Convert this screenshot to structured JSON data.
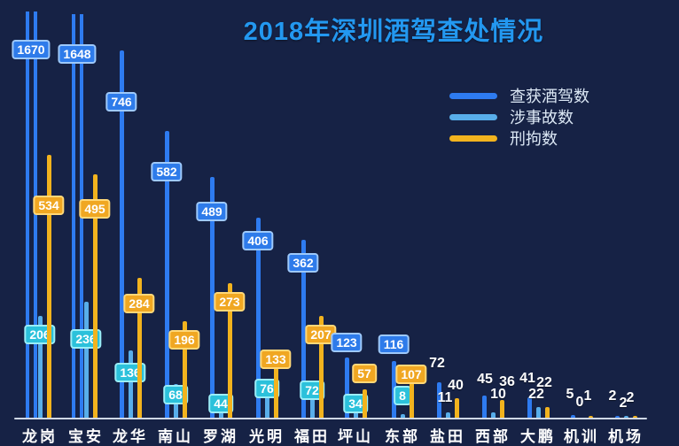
{
  "title": "2018年深圳酒驾查处情况",
  "legend": [
    {
      "label": "查获酒驾数",
      "color": "#2e7bf0"
    },
    {
      "label": "涉事故数",
      "color": "#58aeea"
    },
    {
      "label": "刑拘数",
      "color": "#f2b31e"
    }
  ],
  "chart_data": {
    "type": "bar",
    "title": "2018年深圳酒驾查处情况",
    "categories": [
      "龙岗",
      "宝安",
      "龙华",
      "南山",
      "罗湖",
      "光明",
      "福田",
      "坪山",
      "东部",
      "盐田",
      "西部",
      "大鹏",
      "机训",
      "机场"
    ],
    "series": [
      {
        "name": "查获酒驾数",
        "color": "#2e7bf0",
        "values": [
          1670,
          1648,
          746,
          582,
          489,
          406,
          362,
          123,
          116,
          72,
          45,
          41,
          5,
          2
        ]
      },
      {
        "name": "涉事故数",
        "color": "#58aeea",
        "values": [
          206,
          236,
          136,
          68,
          44,
          76,
          72,
          34,
          8,
          11,
          10,
          22,
          0,
          2
        ]
      },
      {
        "name": "刑拘数",
        "color": "#f2b31e",
        "values": [
          534,
          495,
          284,
          196,
          273,
          133,
          207,
          57,
          107,
          40,
          36,
          22,
          1,
          2
        ]
      }
    ],
    "xlabel": "",
    "ylabel": "",
    "ylim": [
      0,
      830
    ],
    "grid": false,
    "legend_position": "upper-right",
    "value_labels": true
  }
}
